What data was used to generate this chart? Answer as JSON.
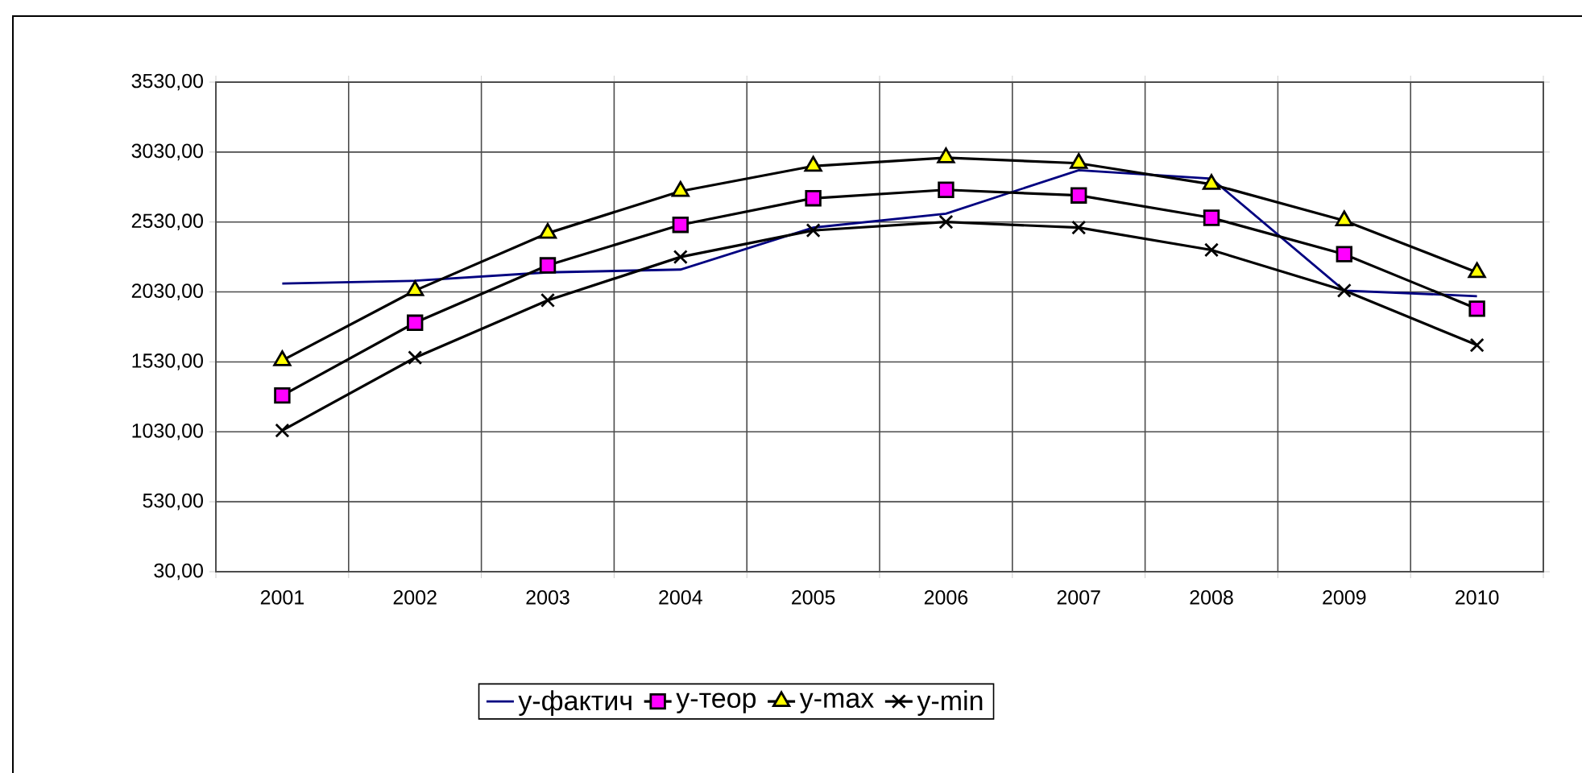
{
  "chart_data": {
    "type": "line",
    "categories": [
      "2001",
      "2002",
      "2003",
      "2004",
      "2005",
      "2006",
      "2007",
      "2008",
      "2009",
      "2010"
    ],
    "series": [
      {
        "name": "y-фактич",
        "color": "#000080",
        "marker": "none",
        "values": [
          2090,
          2110,
          2170,
          2190,
          2490,
          2590,
          2900,
          2840,
          2040,
          2000
        ]
      },
      {
        "name": "y-теор",
        "color": "#ff00ff",
        "marker": "square",
        "values": [
          1290,
          1810,
          2220,
          2510,
          2700,
          2760,
          2720,
          2560,
          2300,
          1910
        ]
      },
      {
        "name": "y-max",
        "color": "#ffff00",
        "marker": "triangle",
        "values": [
          1540,
          2040,
          2450,
          2750,
          2930,
          2990,
          2950,
          2800,
          2540,
          2170
        ]
      },
      {
        "name": "y-min",
        "color": "#000000",
        "marker": "cross",
        "values": [
          1040,
          1560,
          1970,
          2280,
          2470,
          2530,
          2490,
          2330,
          2040,
          1650
        ]
      }
    ],
    "ylim": [
      30,
      3530
    ],
    "yticks": [
      {
        "value": 30,
        "label": "30,00"
      },
      {
        "value": 530,
        "label": "530,00"
      },
      {
        "value": 1030,
        "label": "1030,00"
      },
      {
        "value": 1530,
        "label": "1530,00"
      },
      {
        "value": 2030,
        "label": "2030,00"
      },
      {
        "value": 2530,
        "label": "2530,00"
      },
      {
        "value": 3030,
        "label": "3030,00"
      },
      {
        "value": 3530,
        "label": "3530,00"
      }
    ],
    "grid": true,
    "legend": "bottom",
    "line_style": "solid"
  }
}
